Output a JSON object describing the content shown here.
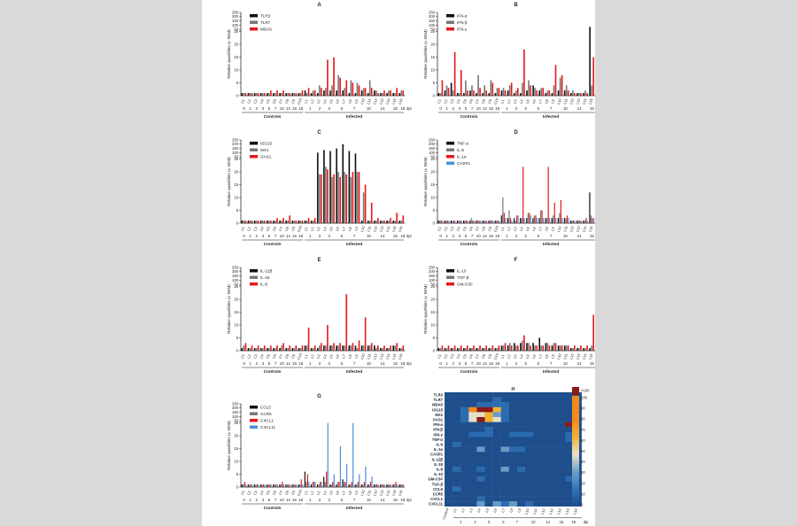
{
  "figure": {
    "ylabel": "Relative quantities (± SEM)",
    "ytick_labels": [
      "0",
      "5",
      "10",
      "15",
      "20",
      "25",
      "50",
      "100",
      "150",
      "200",
      "250"
    ],
    "xtick_labels": [
      "C1",
      "C2",
      "C3",
      "C4",
      "C5",
      "C6",
      "C7",
      "C8",
      "C9",
      "C10",
      "L1",
      "L2",
      "L3",
      "L4",
      "L5",
      "L6",
      "L7",
      "L8",
      "L9",
      "L10",
      "L11",
      "L12",
      "L13",
      "L14",
      "L15",
      "L16"
    ],
    "dpi_groups": [
      "0",
      "1",
      "2",
      "3",
      "5",
      "7",
      "10",
      "14",
      "15",
      "18"
    ],
    "dpi_label": "dpi",
    "controls_label": "Controls",
    "infected_label": "Infected"
  },
  "chart_data": [
    {
      "panel": "A",
      "type": "bar",
      "series": [
        {
          "name": "TLR3",
          "color": "#111111",
          "values": [
            1,
            1,
            1,
            1,
            1,
            1,
            1,
            1,
            1,
            1,
            2,
            1,
            1,
            2,
            2,
            2,
            2,
            1,
            1,
            2,
            1,
            2,
            1,
            1,
            1,
            1
          ]
        },
        {
          "name": "TLR7",
          "color": "#777777",
          "values": [
            1,
            1,
            1,
            1,
            1,
            1,
            1,
            1,
            1,
            1,
            1,
            2,
            4,
            3,
            4,
            8,
            3,
            6,
            5,
            3,
            6,
            2,
            1,
            2,
            1,
            2
          ]
        },
        {
          "name": "MDA5",
          "color": "#e31a1c",
          "values": [
            1,
            1,
            1,
            1,
            2,
            2,
            2,
            1,
            1,
            2,
            3,
            2,
            3,
            14,
            15,
            7,
            6,
            5,
            4,
            3,
            3,
            1,
            2,
            2,
            3,
            2
          ]
        }
      ]
    },
    {
      "panel": "B",
      "type": "bar",
      "series": [
        {
          "name": "IFN-α",
          "color": "#111111",
          "values": [
            1,
            2,
            5,
            1,
            1,
            2,
            1,
            1,
            1,
            1,
            2,
            2,
            1,
            1,
            2,
            4,
            2,
            1,
            1,
            2,
            2,
            1,
            1,
            1,
            80,
            1
          ]
        },
        {
          "name": "IFN-β",
          "color": "#777777",
          "values": [
            1,
            4,
            2,
            1,
            6,
            4,
            8,
            4,
            6,
            3,
            3,
            4,
            2,
            5,
            6,
            3,
            3,
            2,
            4,
            7,
            4,
            2,
            1,
            2,
            4,
            1
          ]
        },
        {
          "name": "IFN-γ",
          "color": "#e31a1c",
          "values": [
            6,
            3,
            17,
            10,
            2,
            2,
            3,
            2,
            5,
            3,
            2,
            5,
            3,
            18,
            4,
            2,
            3,
            2,
            12,
            8,
            2,
            1,
            1,
            1,
            15,
            1
          ]
        }
      ]
    },
    {
      "panel": "C",
      "type": "bar",
      "series": [
        {
          "name": "ISG15",
          "color": "#111111",
          "values": [
            1,
            1,
            1,
            1,
            1,
            1,
            1,
            1,
            1,
            1,
            1,
            1,
            100,
            130,
            120,
            150,
            200,
            120,
            90,
            1,
            1,
            1,
            1,
            1,
            1,
            1
          ]
        },
        {
          "name": "MX1",
          "color": "#777777",
          "values": [
            1,
            1,
            1,
            1,
            1,
            1,
            1,
            1,
            1,
            1,
            1,
            1,
            19,
            22,
            18,
            20,
            20,
            18,
            20,
            12,
            1,
            1,
            1,
            1,
            1,
            1
          ]
        },
        {
          "name": "OAS1",
          "color": "#e31a1c",
          "values": [
            1,
            1,
            1,
            1,
            1,
            2,
            2,
            3,
            1,
            1,
            2,
            2,
            19,
            21,
            19,
            18,
            19,
            20,
            20,
            15,
            8,
            2,
            1,
            2,
            4,
            3
          ]
        }
      ]
    },
    {
      "panel": "D",
      "type": "bar",
      "series": [
        {
          "name": "TNF-α",
          "color": "#111111",
          "values": [
            1,
            1,
            1,
            1,
            1,
            1,
            1,
            1,
            1,
            1,
            3,
            2,
            2,
            2,
            2,
            2,
            2,
            2,
            2,
            2,
            2,
            1,
            1,
            1,
            12,
            1
          ]
        },
        {
          "name": "IL-6",
          "color": "#777777",
          "values": [
            1,
            1,
            1,
            1,
            1,
            2,
            1,
            1,
            1,
            1,
            10,
            5,
            1,
            2,
            4,
            3,
            5,
            2,
            3,
            4,
            2,
            1,
            1,
            1,
            3,
            1
          ]
        },
        {
          "name": "IL-1α",
          "color": "#e31a1c",
          "values": [
            1,
            1,
            1,
            1,
            1,
            1,
            1,
            1,
            1,
            1,
            4,
            2,
            3,
            22,
            4,
            3,
            5,
            22,
            8,
            9,
            3,
            1,
            1,
            2,
            2,
            1
          ]
        },
        {
          "name": "CASP1",
          "color": "#4a90d9",
          "values": [
            1,
            1,
            1,
            1,
            1,
            1,
            1,
            1,
            1,
            1,
            2,
            1,
            3,
            2,
            3,
            2,
            2,
            2,
            2,
            2,
            2,
            1,
            1,
            1,
            2,
            3
          ]
        }
      ]
    },
    {
      "panel": "E",
      "type": "bar",
      "series": [
        {
          "name": "IL-12β",
          "color": "#111111",
          "values": [
            1,
            1,
            1,
            1,
            1,
            1,
            1,
            1,
            1,
            1,
            2,
            1,
            1,
            2,
            2,
            2,
            2,
            2,
            2,
            2,
            2,
            2,
            1,
            1,
            2,
            1
          ]
        },
        {
          "name": "IL-18",
          "color": "#777777",
          "values": [
            2,
            1,
            1,
            1,
            1,
            1,
            2,
            1,
            1,
            1,
            2,
            1,
            2,
            2,
            2,
            2,
            2,
            2,
            1,
            2,
            2,
            1,
            1,
            1,
            2,
            1
          ]
        },
        {
          "name": "IL-8",
          "color": "#e31a1c",
          "values": [
            3,
            2,
            2,
            2,
            2,
            2,
            3,
            2,
            2,
            2,
            9,
            2,
            3,
            10,
            3,
            3,
            22,
            3,
            4,
            13,
            3,
            2,
            2,
            2,
            3,
            2
          ]
        }
      ]
    },
    {
      "panel": "F",
      "type": "bar",
      "series": [
        {
          "name": "IL-10",
          "color": "#111111",
          "values": [
            1,
            1,
            1,
            1,
            1,
            1,
            1,
            1,
            1,
            1,
            2,
            2,
            3,
            3,
            3,
            3,
            5,
            3,
            2,
            2,
            2,
            1,
            1,
            1,
            1,
            1
          ]
        },
        {
          "name": "TGF-β",
          "color": "#777777",
          "values": [
            1,
            1,
            1,
            1,
            1,
            1,
            1,
            1,
            1,
            1,
            2,
            3,
            2,
            4,
            3,
            2,
            2,
            3,
            3,
            2,
            2,
            1,
            1,
            1,
            2,
            1
          ]
        },
        {
          "name": "GM-CSF",
          "color": "#e31a1c",
          "values": [
            2,
            2,
            2,
            2,
            2,
            2,
            2,
            2,
            2,
            2,
            3,
            2,
            2,
            6,
            2,
            2,
            2,
            2,
            3,
            2,
            2,
            2,
            2,
            2,
            14,
            2
          ]
        }
      ]
    },
    {
      "panel": "G",
      "type": "bar",
      "series": [
        {
          "name": "CCL5",
          "color": "#111111",
          "values": [
            1,
            1,
            1,
            1,
            1,
            1,
            1,
            1,
            1,
            1,
            6,
            1,
            1,
            4,
            1,
            1,
            3,
            1,
            1,
            1,
            1,
            1,
            1,
            1,
            1,
            1
          ]
        },
        {
          "name": "CCR5",
          "color": "#777777",
          "values": [
            1,
            1,
            1,
            1,
            1,
            1,
            1,
            1,
            1,
            1,
            2,
            2,
            1,
            2,
            1,
            2,
            2,
            1,
            1,
            1,
            1,
            1,
            1,
            1,
            1,
            1
          ]
        },
        {
          "name": "CXCL1",
          "color": "#e31a1c",
          "values": [
            2,
            1,
            1,
            1,
            1,
            1,
            2,
            1,
            1,
            3,
            5,
            2,
            2,
            6,
            2,
            2,
            2,
            2,
            2,
            2,
            2,
            1,
            1,
            1,
            2,
            1
          ]
        },
        {
          "name": "CXCL11",
          "color": "#4a90d9",
          "values": [
            1,
            1,
            1,
            1,
            1,
            1,
            1,
            1,
            1,
            1,
            2,
            2,
            2,
            25,
            5,
            16,
            9,
            25,
            5,
            8,
            4,
            1,
            1,
            1,
            1,
            1
          ]
        }
      ]
    },
    {
      "panel": "H",
      "type": "heatmap",
      "rows": [
        "TLR3",
        "TLR7",
        "MDA5",
        "ISG15",
        "MX1",
        "OAS1",
        "IFN-α",
        "IFN-β",
        "IFN-γ",
        "TNF-α",
        "IL-6",
        "IL-1α",
        "CASP1",
        "IL-12β",
        "IL-18",
        "IL-8",
        "IL-10",
        "GM-CSF",
        "TGF-β",
        "CCL5",
        "CCR5",
        "CXCL1",
        "CXCL11"
      ],
      "columns": [
        "Control",
        "L1",
        "L2",
        "L3",
        "L4",
        "L5",
        "L6",
        "L7",
        "L8",
        "L9",
        "L10",
        "L11",
        "L12",
        "L13",
        "L14",
        "L15",
        "L16"
      ],
      "colorbar_ticks": [
        "0",
        "10",
        "20",
        "30",
        "40",
        "50",
        "60",
        "70",
        "80",
        "90",
        "100",
        ">100"
      ],
      "colorbar_colors": [
        "#1f4e8c",
        "#2b6cb0",
        "#6a9bc7",
        "#e8e0c8",
        "#f2b134",
        "#f08a1c",
        "#8b1a1a"
      ],
      "values": [
        [
          1,
          2,
          2,
          2,
          3,
          3,
          3,
          2,
          2,
          2,
          2,
          2,
          2,
          2,
          2,
          3,
          2
        ],
        [
          1,
          2,
          3,
          3,
          4,
          5,
          6,
          3,
          3,
          3,
          3,
          3,
          2,
          2,
          2,
          3,
          2
        ],
        [
          1,
          3,
          3,
          4,
          8,
          9,
          8,
          6,
          5,
          4,
          4,
          3,
          2,
          2,
          2,
          3,
          2
        ],
        [
          1,
          3,
          8,
          80,
          110,
          120,
          75,
          10,
          5,
          4,
          3,
          3,
          2,
          2,
          2,
          3,
          2
        ],
        [
          1,
          3,
          6,
          40,
          55,
          60,
          35,
          8,
          4,
          4,
          3,
          3,
          2,
          2,
          2,
          3,
          2
        ],
        [
          1,
          3,
          7,
          50,
          120,
          60,
          50,
          8,
          4,
          4,
          3,
          3,
          2,
          2,
          2,
          3,
          2
        ],
        [
          1,
          3,
          3,
          3,
          4,
          4,
          4,
          3,
          3,
          3,
          3,
          3,
          2,
          2,
          2,
          150,
          2
        ],
        [
          1,
          3,
          4,
          4,
          5,
          6,
          5,
          4,
          4,
          5,
          4,
          3,
          2,
          2,
          2,
          5,
          2
        ],
        [
          1,
          3,
          5,
          10,
          10,
          6,
          5,
          4,
          6,
          8,
          6,
          4,
          2,
          2,
          2,
          12,
          2
        ],
        [
          1,
          3,
          3,
          3,
          3,
          3,
          3,
          3,
          3,
          3,
          3,
          3,
          2,
          2,
          2,
          10,
          2
        ],
        [
          1,
          10,
          5,
          3,
          4,
          5,
          4,
          3,
          4,
          4,
          3,
          3,
          2,
          2,
          2,
          4,
          2
        ],
        [
          1,
          4,
          3,
          3,
          22,
          4,
          3,
          22,
          8,
          9,
          3,
          3,
          2,
          2,
          2,
          3,
          2
        ],
        [
          1,
          3,
          3,
          3,
          3,
          3,
          3,
          3,
          3,
          3,
          3,
          3,
          2,
          2,
          2,
          3,
          2
        ],
        [
          1,
          3,
          3,
          3,
          3,
          3,
          3,
          3,
          3,
          3,
          3,
          3,
          2,
          2,
          2,
          3,
          2
        ],
        [
          1,
          3,
          3,
          3,
          3,
          3,
          3,
          3,
          3,
          3,
          3,
          3,
          2,
          2,
          2,
          3,
          2
        ],
        [
          1,
          9,
          4,
          4,
          10,
          4,
          4,
          22,
          4,
          13,
          4,
          4,
          2,
          2,
          2,
          4,
          2
        ],
        [
          1,
          3,
          3,
          3,
          4,
          3,
          4,
          3,
          3,
          3,
          3,
          3,
          2,
          2,
          2,
          3,
          2
        ],
        [
          1,
          3,
          3,
          3,
          6,
          3,
          3,
          3,
          3,
          3,
          3,
          3,
          2,
          2,
          2,
          14,
          2
        ],
        [
          1,
          3,
          3,
          3,
          4,
          3,
          3,
          3,
          3,
          3,
          3,
          3,
          2,
          2,
          2,
          3,
          2
        ],
        [
          1,
          6,
          3,
          3,
          4,
          3,
          3,
          3,
          3,
          3,
          3,
          3,
          2,
          2,
          2,
          3,
          2
        ],
        [
          1,
          3,
          3,
          3,
          3,
          3,
          3,
          3,
          3,
          3,
          3,
          3,
          2,
          2,
          2,
          3,
          2
        ],
        [
          1,
          5,
          3,
          3,
          6,
          3,
          3,
          3,
          3,
          3,
          3,
          3,
          2,
          2,
          2,
          3,
          2
        ],
        [
          1,
          3,
          3,
          3,
          25,
          5,
          16,
          9,
          25,
          5,
          8,
          4,
          2,
          2,
          2,
          3,
          2
        ]
      ],
      "xtick_groups": [
        "1",
        "2",
        "3",
        "5",
        "7",
        "10",
        "14",
        "15",
        "18"
      ],
      "dpi_label": "dpi"
    }
  ]
}
